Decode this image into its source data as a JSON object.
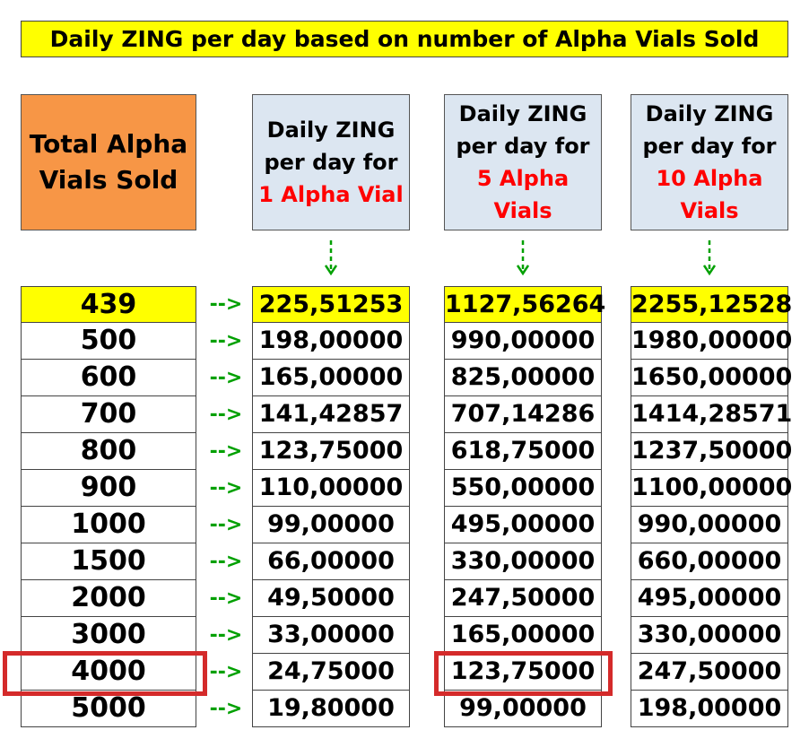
{
  "title": "Daily ZING per day based on number of Alpha Vials Sold",
  "headers": {
    "total": {
      "line1": "Total Alpha",
      "line2": "Vials Sold"
    },
    "col1": {
      "line1": "Daily ZING",
      "line2": "per day for",
      "line3": "1 Alpha Vial"
    },
    "col2": {
      "line1": "Daily ZING",
      "line2": "per day for",
      "line3": "5 Alpha",
      "line4": "Vials"
    },
    "col3": {
      "line1": "Daily ZING",
      "line2": "per day for",
      "line3": "10 Alpha",
      "line4": "Vials"
    }
  },
  "arrow_text": "-->",
  "rows": [
    {
      "sold": "439",
      "v1": "225,51253",
      "v5": "1127,56264",
      "v10": "2255,12528"
    },
    {
      "sold": "500",
      "v1": "198,00000",
      "v5": "990,00000",
      "v10": "1980,00000"
    },
    {
      "sold": "600",
      "v1": "165,00000",
      "v5": "825,00000",
      "v10": "1650,00000"
    },
    {
      "sold": "700",
      "v1": "141,42857",
      "v5": "707,14286",
      "v10": "1414,28571"
    },
    {
      "sold": "800",
      "v1": "123,75000",
      "v5": "618,75000",
      "v10": "1237,50000"
    },
    {
      "sold": "900",
      "v1": "110,00000",
      "v5": "550,00000",
      "v10": "1100,00000"
    },
    {
      "sold": "1000",
      "v1": "99,00000",
      "v5": "495,00000",
      "v10": "990,00000"
    },
    {
      "sold": "1500",
      "v1": "66,00000",
      "v5": "330,00000",
      "v10": "660,00000"
    },
    {
      "sold": "2000",
      "v1": "49,50000",
      "v5": "247,50000",
      "v10": "495,00000"
    },
    {
      "sold": "3000",
      "v1": "33,00000",
      "v5": "165,00000",
      "v10": "330,00000"
    },
    {
      "sold": "4000",
      "v1": "24,75000",
      "v5": "123,75000",
      "v10": "247,50000"
    },
    {
      "sold": "5000",
      "v1": "19,80000",
      "v5": "99,00000",
      "v10": "198,00000"
    }
  ],
  "colors": {
    "title_bg": "#ffff00",
    "first_row_bg": "#ffff00",
    "total_header_bg": "#f79646",
    "col_header_bg": "#dce6f1",
    "highlight": "#ff0000",
    "arrow": "#00a000",
    "highlight_box": "#d42a2a"
  }
}
